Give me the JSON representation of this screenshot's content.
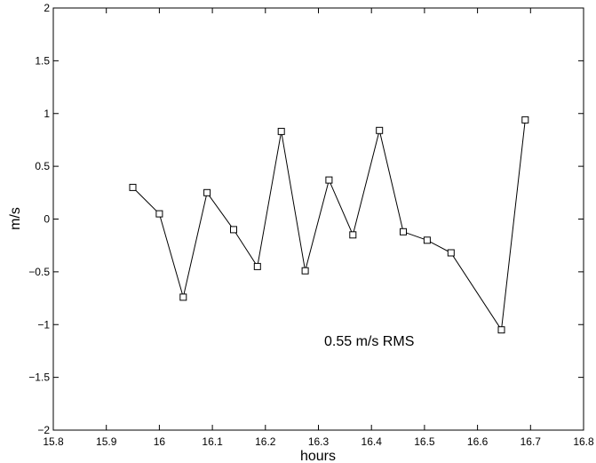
{
  "chart_data": {
    "type": "line",
    "xlabel": "hours",
    "ylabel": "m/s",
    "xlim": [
      15.8,
      16.8
    ],
    "ylim": [
      -2,
      2
    ],
    "xticks": [
      "15.8",
      "15.9",
      "16",
      "16.1",
      "16.2",
      "16.3",
      "16.4",
      "16.5",
      "16.6",
      "16.7",
      "16.8"
    ],
    "yticks": [
      "2",
      "1.5",
      "1",
      "0.5",
      "0",
      "−0.5",
      "−1",
      "−1.5",
      "−2"
    ],
    "grid": false,
    "marker": "square",
    "line_color": "#000000",
    "annotation": "0.55 m/s RMS",
    "series": [
      {
        "x": [
          15.95,
          16.0,
          16.045,
          16.09,
          16.14,
          16.185,
          16.23,
          16.275,
          16.32,
          16.365,
          16.415,
          16.46,
          16.505,
          16.55,
          16.645,
          16.69
        ],
        "y": [
          0.3,
          0.05,
          -0.74,
          0.25,
          -0.1,
          -0.45,
          0.83,
          -0.49,
          0.37,
          -0.15,
          0.84,
          -0.12,
          -0.2,
          -0.32,
          -1.05,
          0.94
        ]
      }
    ]
  }
}
